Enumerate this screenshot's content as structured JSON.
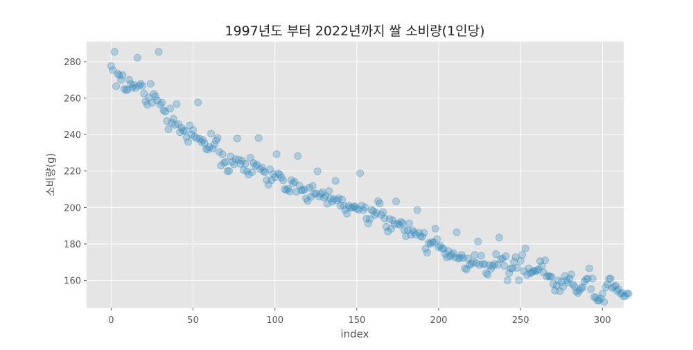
{
  "chart_data": {
    "type": "scatter",
    "title": "1997년도 부터 2022년까지 쌀 소비량(1인당)",
    "xlabel": "index",
    "ylabel": "소비량(g)",
    "xlim": [
      -15,
      313
    ],
    "ylim": [
      145,
      291
    ],
    "xticks": [
      0,
      50,
      100,
      150,
      200,
      250,
      300
    ],
    "yticks": [
      160,
      180,
      200,
      220,
      240,
      260,
      280
    ],
    "grid": true,
    "point_color": "#348ABD",
    "point_opacity": 0.3,
    "background_color": "#E5E5E5",
    "y": [
      277.6,
      275.3,
      285.4,
      266.5,
      273.3,
      272.6,
      270.0,
      272.6,
      265.0,
      264.4,
      264.7,
      270.0,
      267.7,
      265.8,
      267.2,
      265.6,
      282.1,
      266.8,
      267.8,
      266.8,
      262.5,
      258.2,
      256.3,
      260.3,
      267.8,
      257.4,
      262.3,
      261.0,
      258.8,
      285.4,
      256.3,
      257.5,
      253.3,
      252.6,
      247.4,
      242.9,
      254.2,
      246.4,
      248.6,
      245.3,
      256.7,
      245.7,
      241.3,
      243.7,
      242.1,
      242.0,
      238.5,
      236.0,
      245.0,
      240.0,
      242.5,
      238.8,
      238.0,
      257.6,
      237.7,
      236.0,
      237.0,
      235.3,
      232.1,
      231.8,
      233.1,
      240.5,
      232.3,
      234.6,
      236.7,
      238.1,
      230.5,
      223.0,
      229.2,
      224.5,
      225.0,
      220.0,
      220.0,
      228.0,
      225.0,
      223.6,
      226.5,
      237.8,
      226.2,
      223.9,
      225.6,
      220.5,
      224.0,
      219.8,
      218.0,
      227.3,
      219.3,
      224.3,
      222.8,
      223.5,
      238.1,
      221.0,
      222.0,
      220.0,
      219.3,
      215.0,
      212.5,
      220.9,
      215.0,
      218.3,
      216.6,
      229.2,
      218.7,
      218.0,
      216.5,
      214.9,
      210.0,
      209.6,
      210.2,
      208.8,
      215.0,
      213.2,
      214.1,
      208.6,
      228.2,
      212.0,
      209.4,
      209.4,
      209.9,
      205.0,
      203.6,
      210.8,
      205.8,
      211.8,
      207.6,
      207.8,
      219.9,
      206.0,
      207.4,
      208.3,
      205.3,
      206.3,
      202.0,
      209.0,
      205.0,
      203.2,
      204.5,
      214.6,
      204.0,
      205.1,
      200.9,
      204.3,
      201.0,
      198.6,
      196.6,
      201.0,
      200.1,
      199.9,
      200.3,
      200.6,
      199.3,
      198.8,
      218.8,
      201.0,
      198.6,
      200.1,
      193.9,
      191.3,
      193.7,
      198.7,
      198.1,
      195.8,
      197.0,
      203.4,
      202.2,
      196.0,
      197.4,
      194.0,
      189.4,
      186.8,
      193.7,
      188.3,
      193.0,
      190.8,
      203.3,
      191.1,
      190.5,
      192.1,
      191.5,
      187.6,
      184.3,
      187.5,
      191.3,
      185.0,
      187.4,
      186.3,
      185.0,
      198.6,
      186.2,
      184.2,
      183.9,
      186.0,
      177.4,
      175.2,
      180.5,
      180.1,
      181.0,
      180.8,
      188.3,
      182.6,
      178.2,
      179.0,
      177.6,
      177.3,
      174.5,
      172.6,
      176.1,
      173.2,
      174.2,
      175.0,
      172.6,
      186.4,
      172.0,
      172.4,
      174.0,
      172.3,
      166.6,
      166.0,
      172.0,
      168.5,
      169.2,
      170.0,
      174.0,
      169.5,
      181.3,
      168.5,
      173.5,
      169.0,
      168.9,
      163.9,
      163.1,
      168.3,
      166.3,
      168.0,
      169.0,
      174.4,
      168.5,
      183.5,
      171.7,
      172.0,
      168.0,
      173.3,
      160.0,
      164.0,
      166.6,
      166.6,
      170.3,
      172.8,
      166.9,
      160.0,
      170.7,
      174.0,
      165.0,
      177.5,
      163.0,
      166.6,
      164.0,
      164.5,
      165.3,
      165.0,
      165.5,
      166.1,
      170.6,
      167.9,
      164.4,
      171.0,
      162.0,
      162.6,
      162.0,
      162.0,
      158.0,
      154.4,
      157.0,
      160.0,
      154.1,
      159.2,
      156.5,
      162.4,
      160.0,
      158.8,
      161.0,
      163.3,
      157.8,
      156.5,
      154.0,
      153.1,
      154.5,
      155.8,
      156.1,
      159.4,
      160.6,
      161.0,
      166.6,
      155.2,
      161.0,
      150.9,
      150.6,
      149.0,
      148.8,
      150.0,
      152.6,
      148.2,
      156.2,
      157.9,
      160.8,
      161.0,
      155.9,
      156.6,
      157.2,
      154.2,
      155.0,
      152.8,
      153.1,
      151.2,
      151.5,
      152.8,
      152.6
    ]
  }
}
